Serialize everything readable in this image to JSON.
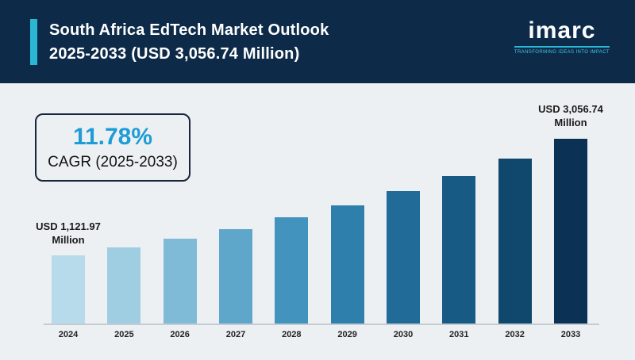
{
  "header": {
    "title_line1": "South Africa EdTech Market Outlook",
    "title_line2": "2025-2033 (USD 3,056.74 Million)"
  },
  "logo": {
    "name": "imarc",
    "tagline": "TRANSFORMING IDEAS INTO IMPACT"
  },
  "cagr": {
    "value": "11.78%",
    "label": "CAGR (2025-2033)"
  },
  "chart_data": {
    "type": "bar",
    "title": "South Africa EdTech Market Outlook 2025-2033 (USD 3,056.74 Million)",
    "xlabel": "",
    "ylabel": "",
    "ylim": [
      0,
      3100
    ],
    "grid": false,
    "legend": "none",
    "categories": [
      "2024",
      "2025",
      "2026",
      "2027",
      "2028",
      "2029",
      "2030",
      "2031",
      "2032",
      "2033"
    ],
    "values": [
      1121.97,
      1254.15,
      1401.89,
      1567.03,
      1751.62,
      1957.96,
      2188.61,
      2446.43,
      2734.61,
      3056.74
    ],
    "bar_colors": [
      "#b8dbeb",
      "#9fcde2",
      "#7fbbd7",
      "#5fa7ca",
      "#4293bd",
      "#2e7fab",
      "#206b97",
      "#175a84",
      "#10476d",
      "#0b3254"
    ],
    "annotations": [
      {
        "target": "2024",
        "line1": "USD 1,121.97",
        "line2": "Million"
      },
      {
        "target": "2033",
        "line1": "USD 3,056.74",
        "line2": "Million"
      }
    ]
  },
  "colors": {
    "header_bg": "#0d2b49",
    "accent": "#2bb7d4",
    "body_bg": "#edf0f3",
    "cagr_value_color": "#1e9cd7"
  }
}
